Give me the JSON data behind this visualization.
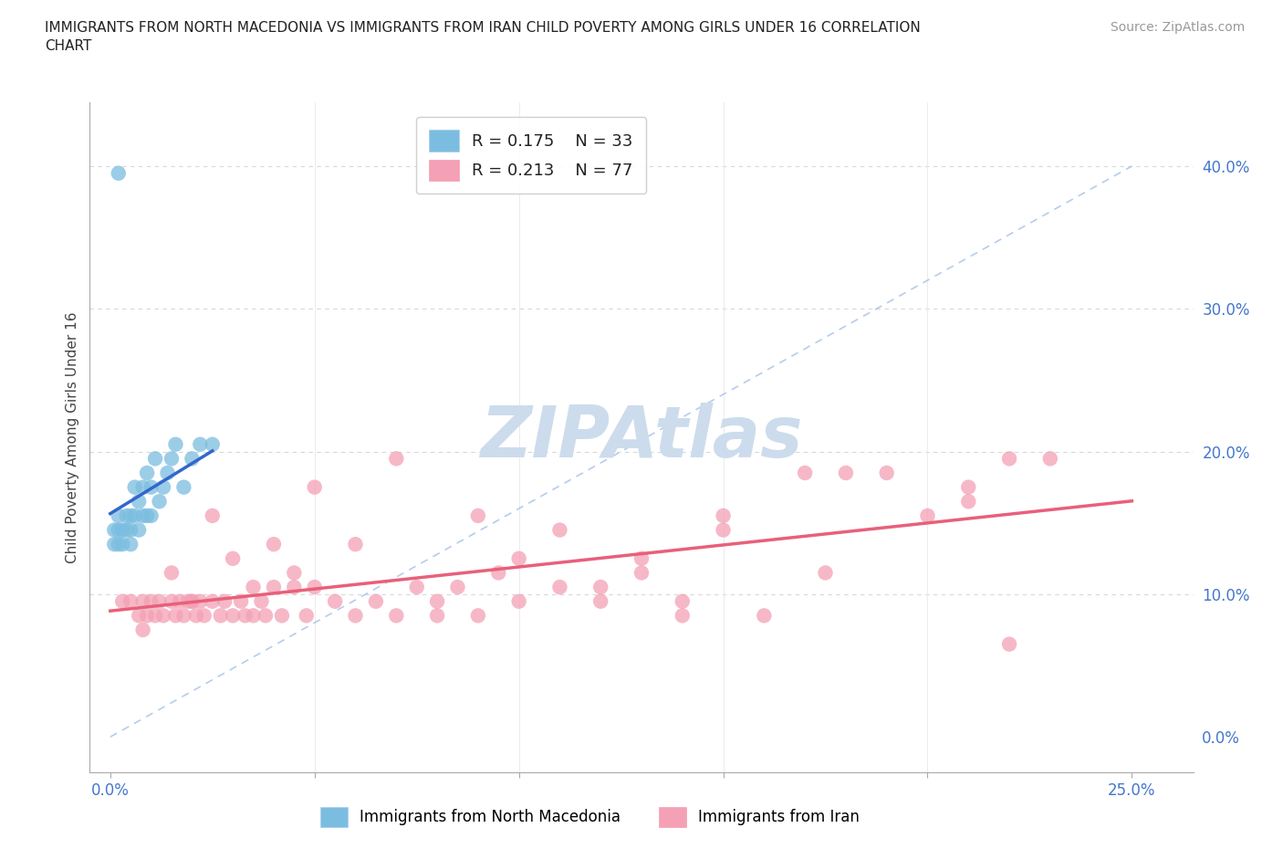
{
  "title": "IMMIGRANTS FROM NORTH MACEDONIA VS IMMIGRANTS FROM IRAN CHILD POVERTY AMONG GIRLS UNDER 16 CORRELATION\nCHART",
  "source": "Source: ZipAtlas.com",
  "ylabel": "Child Poverty Among Girls Under 16",
  "xtick_positions": [
    0.0,
    0.25
  ],
  "xtick_labels": [
    "0.0%",
    "25.0%"
  ],
  "ytick_positions": [
    0.0,
    0.1,
    0.2,
    0.3,
    0.4
  ],
  "ytick_labels": [
    "0.0%",
    "10.0%",
    "20.0%",
    "30.0%",
    "40.0%"
  ],
  "xlim": [
    -0.005,
    0.265
  ],
  "ylim": [
    -0.025,
    0.445
  ],
  "legend_r1": "R = 0.175",
  "legend_n1": "N = 33",
  "legend_r2": "R = 0.213",
  "legend_n2": "N = 77",
  "color_macedonia": "#7bbde0",
  "color_iran": "#f4a0b5",
  "color_trendline_macedonia": "#3366cc",
  "color_trendline_iran": "#e8607a",
  "color_diagonal": "#a8c4e8",
  "color_grid_h": "#d8d8d8",
  "color_grid_v": "#e8e8e8",
  "watermark": "ZIPAtlas",
  "watermark_color": "#ccdcec",
  "north_macedonia_x": [
    0.001,
    0.001,
    0.002,
    0.002,
    0.002,
    0.003,
    0.003,
    0.004,
    0.004,
    0.005,
    0.005,
    0.005,
    0.006,
    0.006,
    0.007,
    0.007,
    0.008,
    0.008,
    0.009,
    0.009,
    0.01,
    0.01,
    0.011,
    0.012,
    0.013,
    0.014,
    0.015,
    0.016,
    0.018,
    0.02,
    0.022,
    0.025,
    0.002
  ],
  "north_macedonia_y": [
    0.145,
    0.135,
    0.155,
    0.135,
    0.145,
    0.145,
    0.135,
    0.145,
    0.155,
    0.145,
    0.135,
    0.155,
    0.155,
    0.175,
    0.145,
    0.165,
    0.155,
    0.175,
    0.155,
    0.185,
    0.175,
    0.155,
    0.195,
    0.165,
    0.175,
    0.185,
    0.195,
    0.205,
    0.175,
    0.195,
    0.205,
    0.205,
    0.395
  ],
  "iran_x": [
    0.003,
    0.005,
    0.007,
    0.008,
    0.009,
    0.01,
    0.011,
    0.012,
    0.013,
    0.015,
    0.016,
    0.017,
    0.018,
    0.019,
    0.02,
    0.021,
    0.022,
    0.023,
    0.025,
    0.027,
    0.028,
    0.03,
    0.032,
    0.033,
    0.035,
    0.037,
    0.038,
    0.04,
    0.042,
    0.045,
    0.048,
    0.05,
    0.055,
    0.06,
    0.065,
    0.07,
    0.075,
    0.08,
    0.085,
    0.09,
    0.095,
    0.1,
    0.11,
    0.12,
    0.13,
    0.14,
    0.15,
    0.16,
    0.17,
    0.175,
    0.18,
    0.19,
    0.2,
    0.21,
    0.22,
    0.008,
    0.015,
    0.02,
    0.025,
    0.03,
    0.035,
    0.04,
    0.045,
    0.05,
    0.06,
    0.07,
    0.08,
    0.09,
    0.1,
    0.11,
    0.12,
    0.13,
    0.14,
    0.15,
    0.23,
    0.22,
    0.21
  ],
  "iran_y": [
    0.095,
    0.095,
    0.085,
    0.095,
    0.085,
    0.095,
    0.085,
    0.095,
    0.085,
    0.095,
    0.085,
    0.095,
    0.085,
    0.095,
    0.095,
    0.085,
    0.095,
    0.085,
    0.095,
    0.085,
    0.095,
    0.085,
    0.095,
    0.085,
    0.085,
    0.095,
    0.085,
    0.105,
    0.085,
    0.105,
    0.085,
    0.105,
    0.095,
    0.085,
    0.095,
    0.085,
    0.105,
    0.085,
    0.105,
    0.085,
    0.115,
    0.095,
    0.105,
    0.095,
    0.115,
    0.085,
    0.145,
    0.085,
    0.185,
    0.115,
    0.185,
    0.185,
    0.155,
    0.165,
    0.195,
    0.075,
    0.115,
    0.095,
    0.155,
    0.125,
    0.105,
    0.135,
    0.115,
    0.175,
    0.135,
    0.195,
    0.095,
    0.155,
    0.125,
    0.145,
    0.105,
    0.125,
    0.095,
    0.155,
    0.195,
    0.065,
    0.175
  ]
}
